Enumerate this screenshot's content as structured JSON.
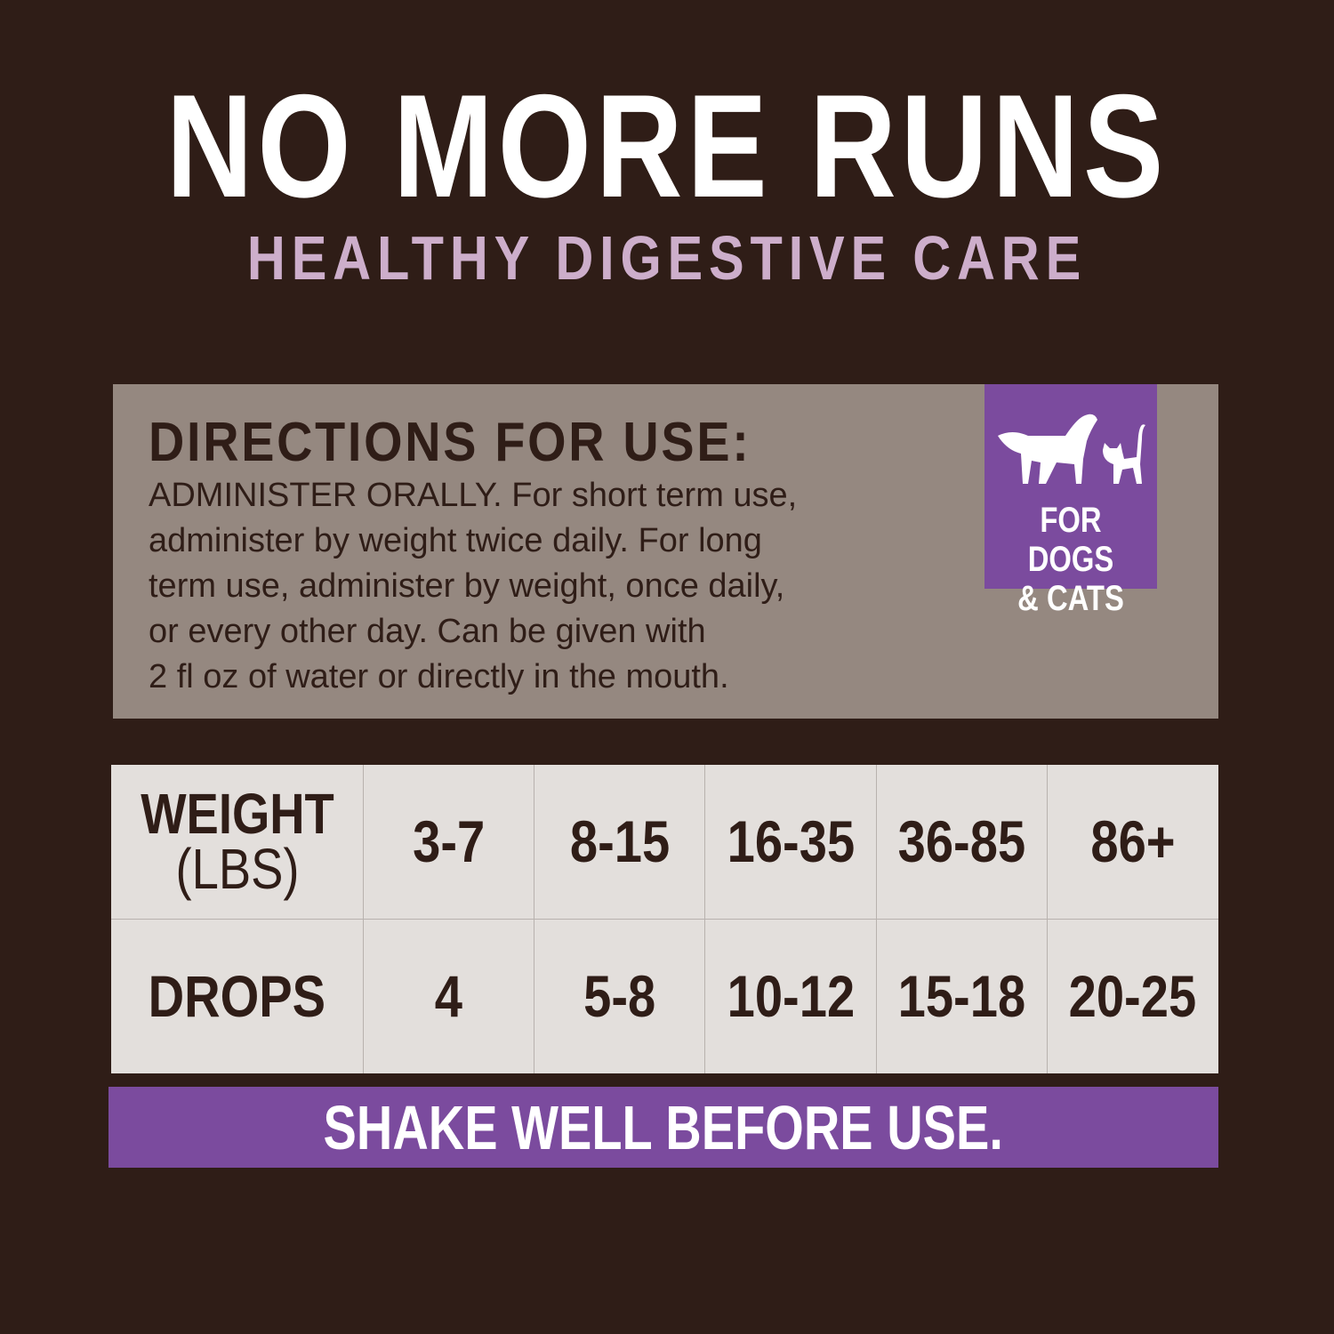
{
  "header": {
    "title": "NO MORE RUNS",
    "subtitle": "HEALTHY DIGESTIVE CARE"
  },
  "directions": {
    "heading": "DIRECTIONS FOR USE:",
    "lines": [
      "ADMINISTER ORALLY. For short term use,",
      "administer by weight twice daily. For long",
      "term use, administer by weight, once daily,",
      "or every other day. Can be given with",
      "2 fl oz of water or directly in the mouth."
    ]
  },
  "badge": {
    "icon": "dog-and-cat-icon",
    "line1": "FOR DOGS",
    "line2": "& CATS"
  },
  "dosage_table": {
    "weight_label": "WEIGHT",
    "weight_unit": "(LBS)",
    "drops_label": "DROPS",
    "weights": [
      "3-7",
      "8-15",
      "16-35",
      "36-85",
      "86+"
    ],
    "drops": [
      "4",
      "5-8",
      "10-12",
      "15-18",
      "20-25"
    ]
  },
  "footer": {
    "text": "SHAKE WELL BEFORE USE."
  },
  "colors": {
    "background": "#2f1d17",
    "accent": "#7b4b9e",
    "subtitle": "#cdaecb",
    "panel": "#958880",
    "table": "#e3dfdc"
  }
}
